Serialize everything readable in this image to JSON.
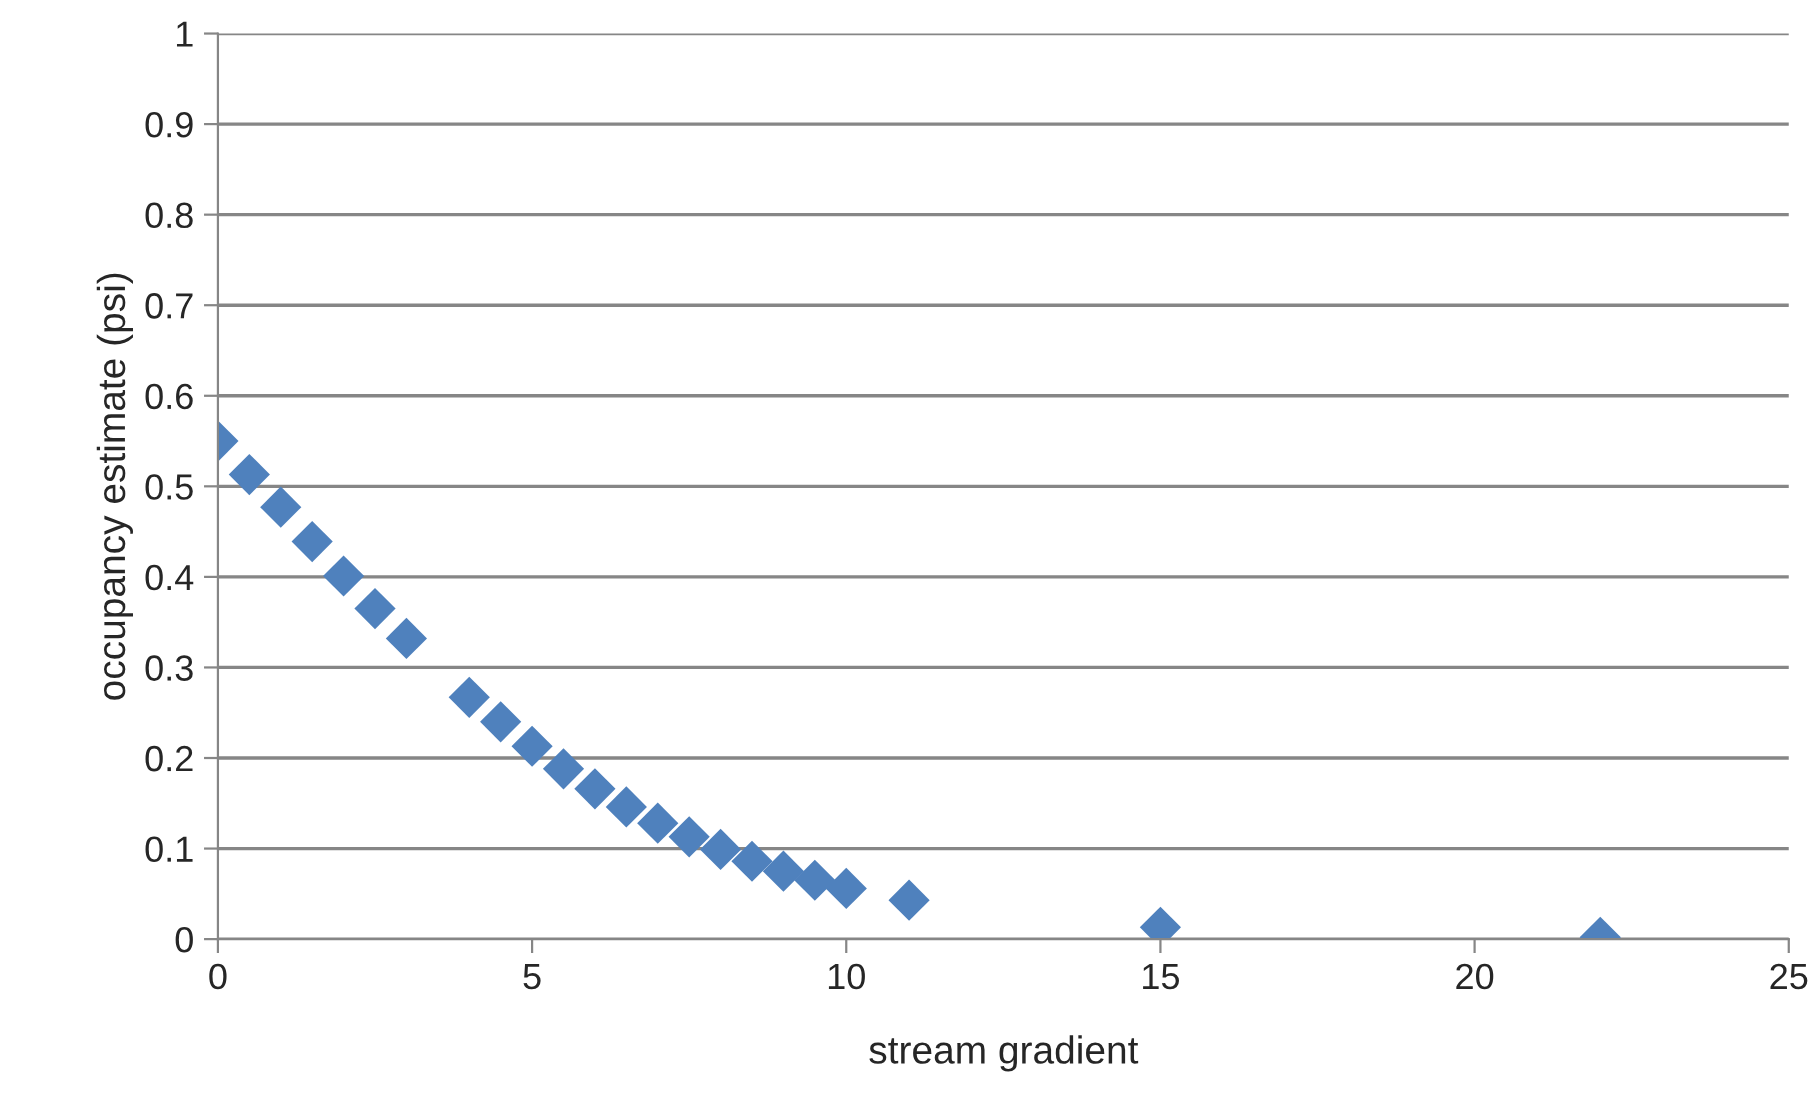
{
  "chart_data": {
    "type": "scatter",
    "xlabel": "stream gradient",
    "ylabel": "occupancy estimate (psi)",
    "series": [
      {
        "color": "#4f81bd",
        "x": [
          0,
          0.5,
          1,
          1.5,
          2,
          2.5,
          3,
          4,
          4.5,
          5,
          5.5,
          6,
          6.5,
          7,
          7.5,
          8,
          8.5,
          9,
          9.5,
          10,
          11,
          15,
          22
        ],
        "values": [
          0.55,
          0.513,
          0.477,
          0.439,
          0.401,
          0.365,
          0.332,
          0.267,
          0.24,
          0.213,
          0.188,
          0.166,
          0.146,
          0.128,
          0.113,
          0.099,
          0.086,
          0.075,
          0.065,
          0.056,
          0.043,
          0.013,
          0.002
        ]
      }
    ],
    "marker": "diamond",
    "xlim": [
      0,
      25
    ],
    "xticks": [
      0,
      5,
      10,
      15,
      20,
      25
    ],
    "ylim": [
      0,
      1
    ],
    "yticks": [
      0,
      0.1,
      0.2,
      0.3,
      0.4,
      0.5,
      0.6,
      0.7,
      0.8,
      0.9,
      1
    ],
    "grid": "y",
    "legend": false
  }
}
